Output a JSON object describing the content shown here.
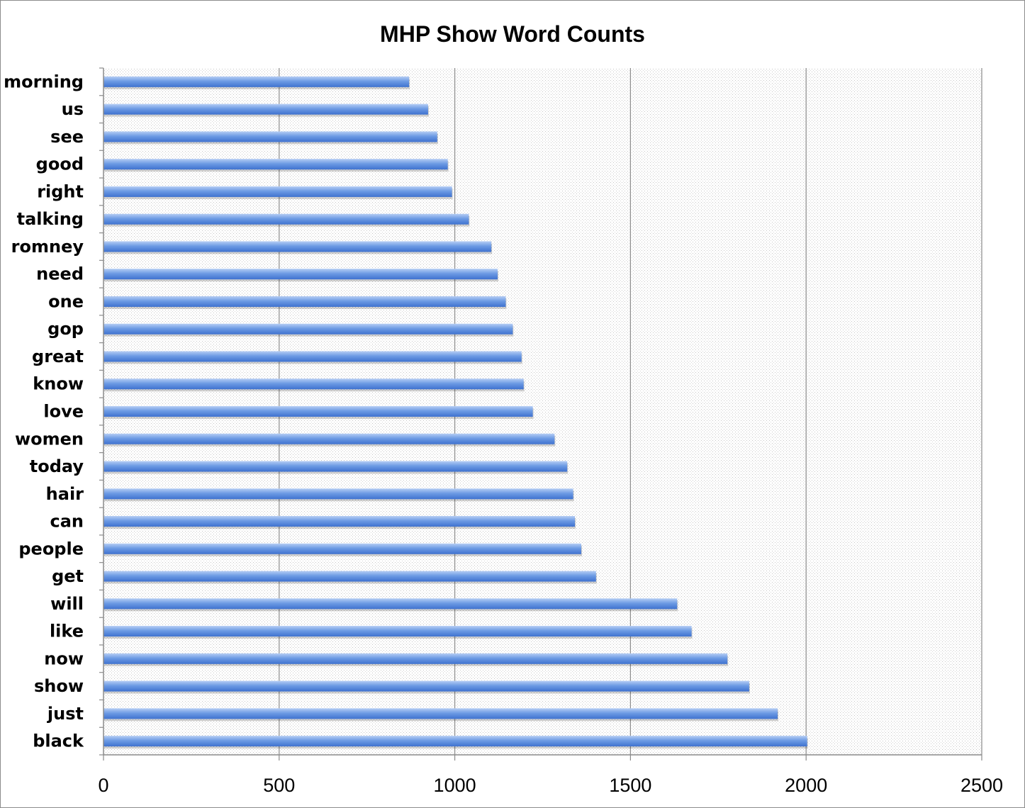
{
  "chart_data": {
    "type": "bar",
    "orientation": "horizontal",
    "title": "MHP Show Word Counts",
    "xlabel": "",
    "ylabel": "",
    "xlim": [
      0,
      2500
    ],
    "x_ticks": [
      0,
      500,
      1000,
      1500,
      2000,
      2500
    ],
    "grid": true,
    "legend": "none",
    "bar_color": "#5b8fe0",
    "categories": [
      "morning",
      "us",
      "see",
      "good",
      "right",
      "talking",
      "romney",
      "need",
      "one",
      "gop",
      "great",
      "know",
      "love",
      "women",
      "today",
      "hair",
      "can",
      "people",
      "get",
      "will",
      "like",
      "now",
      "show",
      "just",
      "black"
    ],
    "values": [
      870,
      924,
      950,
      980,
      992,
      1040,
      1104,
      1122,
      1145,
      1165,
      1190,
      1196,
      1222,
      1284,
      1320,
      1337,
      1342,
      1360,
      1402,
      1633,
      1674,
      1776,
      1838,
      1919,
      2003
    ]
  }
}
